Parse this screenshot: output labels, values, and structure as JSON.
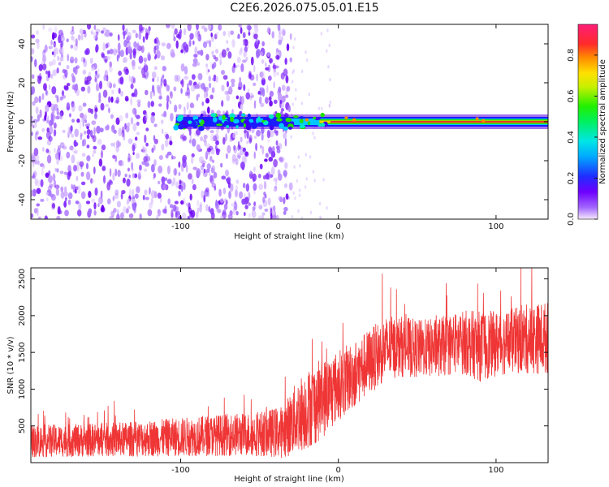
{
  "title": "C2E6.2026.075.05.01.E15",
  "colors": {
    "spectrogram_low": "#9c6cff",
    "spectrogram_band_core": "#e83a2a",
    "snr_line": "#ef3535",
    "axis": "#111111"
  },
  "chart_data": [
    {
      "type": "heatmap",
      "xlabel": "Height of straight line (km)",
      "ylabel": "Frequency (Hz)",
      "xlim": [
        -195,
        133
      ],
      "ylim": [
        -50,
        50
      ],
      "xticks": [
        -100,
        0,
        100
      ],
      "yticks": [
        -40,
        -20,
        0,
        20,
        40
      ],
      "colorbar": {
        "label": "Normalized spectral amplitude",
        "range": [
          0,
          0.95
        ],
        "ticks": [
          0.0,
          0.2,
          0.4,
          0.6,
          0.8
        ],
        "colormap": "rainbow (violet → blue → cyan → green → yellow → orange → red → magenta)"
      },
      "features": [
        {
          "description": "broadband scattered low-amplitude noise",
          "x_range": [
            -195,
            -30
          ],
          "amplitude": 0.1
        },
        {
          "description": "narrow band centered near 0 Hz",
          "x_range": [
            -103,
            133
          ],
          "amplitude_range": [
            0.2,
            0.9
          ]
        },
        {
          "description": "peak amplitude along band",
          "x_range": [
            20,
            105
          ],
          "amplitude": 0.9
        }
      ]
    },
    {
      "type": "line",
      "xlabel": "Height of straight line (km)",
      "ylabel": "SNR (10 * v/v)",
      "xlim": [
        -195,
        133
      ],
      "ylim": [
        0,
        2650
      ],
      "xticks": [
        -100,
        0,
        100
      ],
      "yticks": [
        500,
        1000,
        1500,
        2000,
        2500
      ],
      "series": [
        {
          "x": [
            -195,
            -170,
            -150,
            -130,
            -110,
            -90,
            -70,
            -50,
            -35,
            -25,
            -15,
            -5,
            0,
            10,
            20,
            30,
            40,
            50,
            60,
            70,
            80,
            90,
            100,
            110,
            120,
            133
          ],
          "y": [
            290,
            300,
            310,
            320,
            340,
            360,
            380,
            390,
            420,
            650,
            800,
            950,
            1050,
            1200,
            1380,
            1550,
            1580,
            1550,
            1560,
            1600,
            1640,
            1580,
            1620,
            1650,
            1680,
            1700
          ],
          "noise_spread": [
            280,
            280,
            290,
            300,
            320,
            340,
            360,
            380,
            450,
            650,
            700,
            650,
            600,
            580,
            560,
            550,
            520,
            500,
            500,
            520,
            550,
            600,
            560,
            560,
            600,
            620
          ]
        }
      ]
    }
  ]
}
